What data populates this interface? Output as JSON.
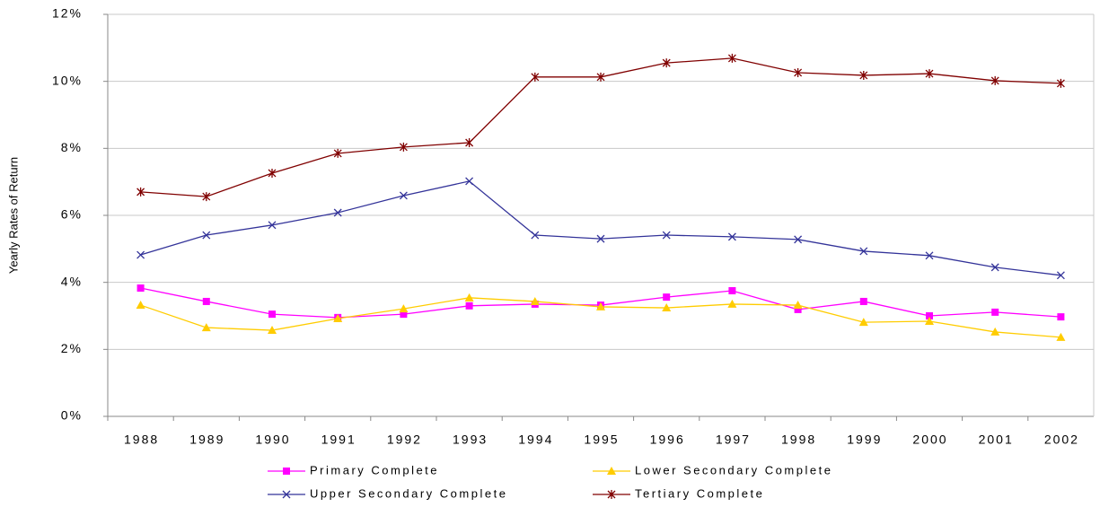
{
  "chart_data": {
    "type": "line",
    "y_label": "Yearly Rates of Return",
    "categories": [
      "1988",
      "1989",
      "1990",
      "1991",
      "1992",
      "1993",
      "1994",
      "1995",
      "1996",
      "1997",
      "1998",
      "1999",
      "2000",
      "2001",
      "2002"
    ],
    "ylim": [
      0,
      12
    ],
    "yticks": [
      {
        "value": 0,
        "label": "0%"
      },
      {
        "value": 2,
        "label": "2%"
      },
      {
        "value": 4,
        "label": "4%"
      },
      {
        "value": 6,
        "label": "6%"
      },
      {
        "value": 8,
        "label": "8%"
      },
      {
        "value": 10,
        "label": "10%"
      },
      {
        "value": 12,
        "label": "12%"
      }
    ],
    "grid": true,
    "series": [
      {
        "name": "Primary Complete",
        "color": "#ff00ff",
        "marker": "square",
        "values": [
          3.83,
          3.43,
          3.05,
          2.95,
          3.05,
          3.3,
          3.35,
          3.32,
          3.56,
          3.75,
          3.19,
          3.43,
          3.0,
          3.11,
          2.97
        ]
      },
      {
        "name": "Lower Secondary Complete",
        "color": "#ffcc00",
        "marker": "triangle",
        "values": [
          3.32,
          2.65,
          2.57,
          2.92,
          3.21,
          3.54,
          3.43,
          3.27,
          3.24,
          3.35,
          3.32,
          2.81,
          2.84,
          2.52,
          2.36
        ]
      },
      {
        "name": "Upper Secondary Complete",
        "color": "#333399",
        "marker": "x",
        "values": [
          4.82,
          5.41,
          5.71,
          6.08,
          6.59,
          7.02,
          5.41,
          5.3,
          5.41,
          5.36,
          5.28,
          4.93,
          4.8,
          4.45,
          4.21
        ]
      },
      {
        "name": "Tertiary Complete",
        "color": "#800000",
        "marker": "star",
        "values": [
          6.7,
          6.56,
          7.26,
          7.85,
          8.04,
          8.17,
          10.13,
          10.13,
          10.55,
          10.69,
          10.26,
          10.18,
          10.23,
          10.02,
          9.94
        ]
      }
    ]
  }
}
